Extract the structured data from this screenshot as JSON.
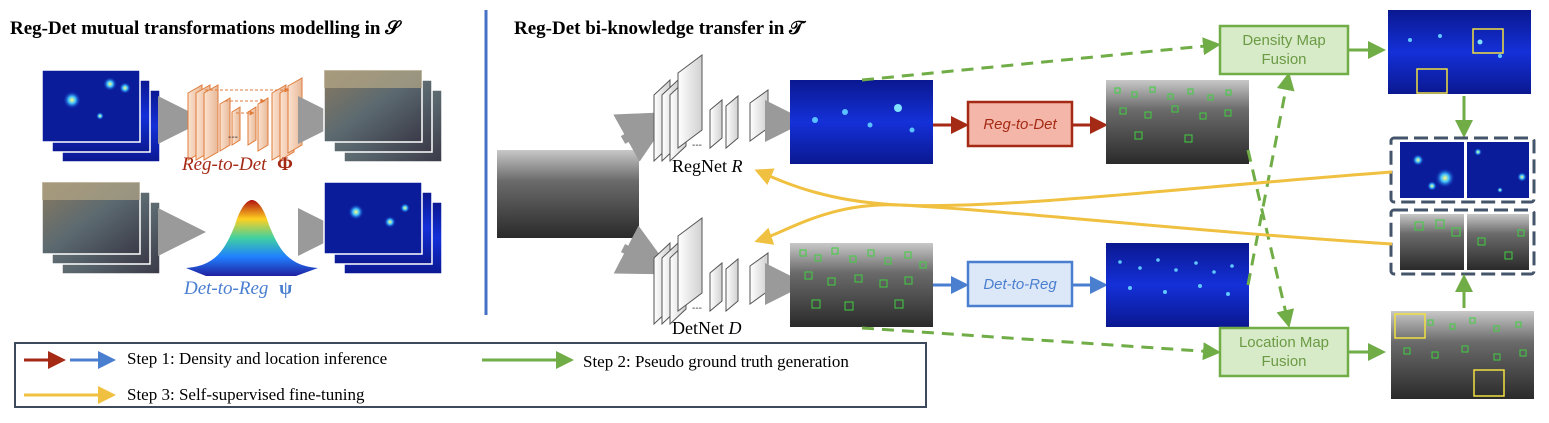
{
  "headings": {
    "left": "Reg-Det mutual transformations modelling in 𝒮",
    "right": "Reg-Det bi-knowledge transfer in 𝒯"
  },
  "labels": {
    "reg_to_det_phi": "Reg-to-Det",
    "phi_symbol": "Φ",
    "det_to_reg_psi": "Det-to-Reg",
    "psi_symbol": "ψ",
    "regnet": "RegNet",
    "regnet_var": "R",
    "detnet": "DetNet",
    "detnet_var": "D",
    "dots": "---"
  },
  "boxes": {
    "reg_to_det": "Reg-to-Det",
    "det_to_reg": "Det-to-Reg",
    "density_fusion": "Density Map\nFusion",
    "location_fusion": "Location Map\nFusion"
  },
  "legend": {
    "step1": "Step 1: Density and location inference",
    "step2": "Step 2: Pseudo ground truth generation",
    "step3": "Step 3: Self-supervised fine-tuning"
  },
  "colors": {
    "red": "#a52a15",
    "blue": "#4a7fd0",
    "green": "#70ad47",
    "yellow": "#f0c040",
    "gray": "#9a9a9a",
    "orange": "#e07b39",
    "divider": "#4472c4",
    "dark_frame": "#44546a",
    "red_box_fill": "#f4b6a8",
    "blue_box_fill": "#dce8f8",
    "green_box_fill": "#d8ebc8"
  }
}
